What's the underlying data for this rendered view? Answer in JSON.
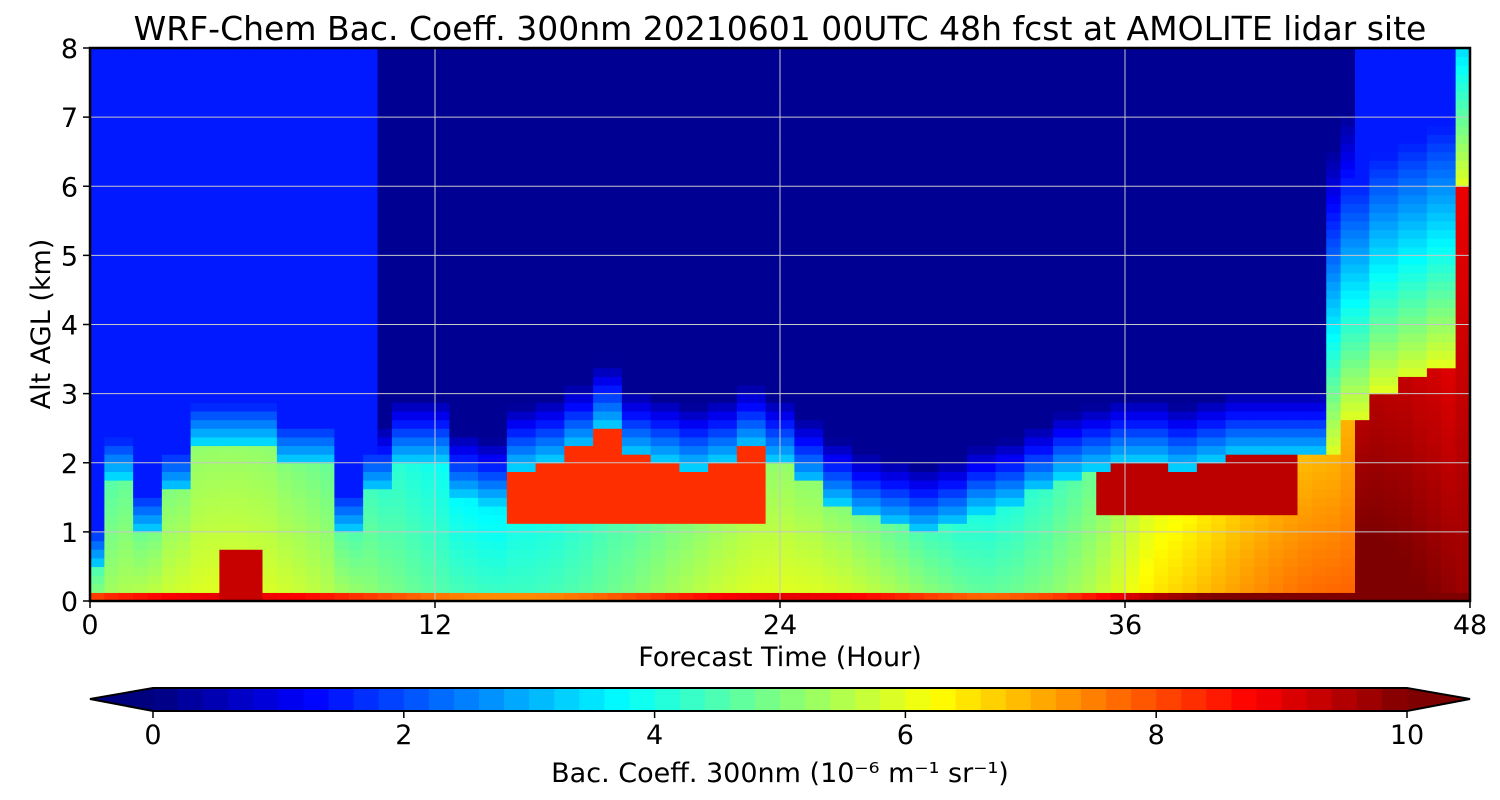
{
  "chart_data": {
    "type": "heatmap",
    "title": "WRF-Chem Bac. Coeff. 300nm  20210601 00UTC 48h fcst at AMOLITE lidar site",
    "xlabel": "Forecast Time (Hour)",
    "ylabel": "Alt AGL (km)",
    "xlim": [
      0,
      48
    ],
    "ylim": [
      0,
      8
    ],
    "x_ticks": [
      "0",
      "12",
      "24",
      "36",
      "48"
    ],
    "y_ticks": [
      "0",
      "1",
      "2",
      "3",
      "4",
      "5",
      "6",
      "7",
      "8"
    ],
    "grid": true,
    "colormap": "jet",
    "x": [
      0,
      1,
      2,
      3,
      4,
      5,
      6,
      7,
      8,
      9,
      10,
      11,
      12,
      13,
      14,
      15,
      16,
      17,
      18,
      19,
      20,
      21,
      22,
      23,
      24,
      25,
      26,
      27,
      28,
      29,
      30,
      31,
      32,
      33,
      34,
      35,
      36,
      37,
      38,
      39,
      40,
      41,
      42,
      43,
      44,
      45,
      46,
      47,
      48
    ],
    "y": [
      0,
      0.5,
      1.0,
      1.5,
      2.0,
      2.5,
      3.0,
      3.5,
      4.0,
      4.5,
      5.0,
      5.5,
      6.0,
      6.5,
      7.0,
      7.5,
      8.0
    ],
    "max_layer_height_km": [
      0.5,
      1.8,
      1.0,
      1.6,
      2.3,
      2.3,
      2.3,
      2.0,
      2.0,
      1.0,
      1.6,
      2.0,
      2.0,
      1.5,
      1.4,
      1.9,
      2.0,
      2.2,
      2.5,
      2.1,
      2.0,
      1.9,
      2.0,
      2.2,
      2.0,
      1.7,
      1.4,
      1.2,
      1.1,
      1.0,
      1.1,
      1.3,
      1.4,
      1.6,
      1.8,
      1.9,
      2.0,
      2.0,
      1.9,
      2.0,
      2.1,
      2.1,
      2.1,
      2.1,
      2.6,
      3.0,
      3.2,
      3.4,
      6.0
    ],
    "colorbar": {
      "label": "Bac. Coeff. 300nm",
      "units": "(10⁻⁶ m⁻¹ sr⁻¹)",
      "range": [
        0,
        10
      ],
      "ticks": [
        "0",
        "2",
        "4",
        "6",
        "8",
        "10"
      ],
      "extend": "both",
      "colors": [
        "#00007f",
        "#0000ff",
        "#007fff",
        "#00ffff",
        "#7fff7f",
        "#ffff00",
        "#ff7f00",
        "#ff0000",
        "#7f0000"
      ]
    }
  }
}
